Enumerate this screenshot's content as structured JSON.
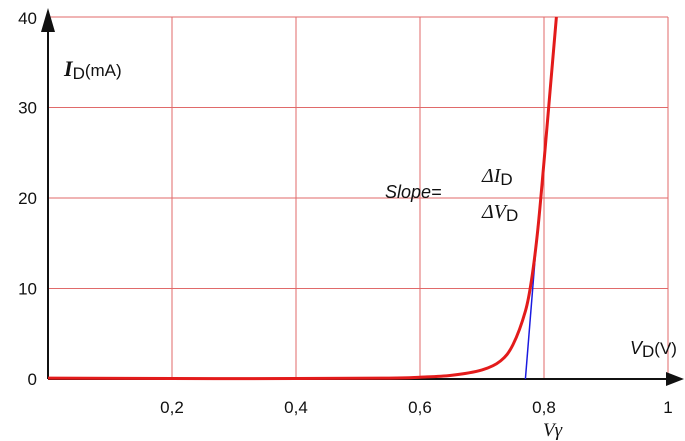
{
  "chart_data": {
    "type": "line",
    "xlim": [
      0,
      1
    ],
    "ylim": [
      0,
      40
    ],
    "x_ticks": [
      {
        "value": 0.2,
        "label": "0,2"
      },
      {
        "value": 0.4,
        "label": "0,4"
      },
      {
        "value": 0.6,
        "label": "0,6"
      },
      {
        "value": 0.8,
        "label": "0,8"
      },
      {
        "value": 1.0,
        "label": "1"
      }
    ],
    "y_ticks": [
      {
        "value": 0,
        "label": "0"
      },
      {
        "value": 10,
        "label": "10"
      },
      {
        "value": 20,
        "label": "20"
      },
      {
        "value": 30,
        "label": "30"
      },
      {
        "value": 40,
        "label": "40"
      }
    ],
    "xlabel": {
      "main": "V",
      "sub": "D",
      "unit": "(V)"
    },
    "ylabel": {
      "main": "I",
      "sub": "D",
      "unit": "(mA)"
    },
    "grid": true,
    "grid_color": "#e06a6a",
    "series": [
      {
        "color": "#e31b1b",
        "points": [
          [
            0.0,
            0.1
          ],
          [
            0.2,
            0.05
          ],
          [
            0.4,
            0.05
          ],
          [
            0.55,
            0.1
          ],
          [
            0.6,
            0.2
          ],
          [
            0.65,
            0.4
          ],
          [
            0.7,
            1.0
          ],
          [
            0.73,
            2.0
          ],
          [
            0.75,
            3.8
          ],
          [
            0.77,
            7.5
          ],
          [
            0.78,
            11.0
          ],
          [
            0.79,
            16.5
          ],
          [
            0.8,
            24.0
          ],
          [
            0.81,
            32.0
          ],
          [
            0.82,
            40.0
          ]
        ]
      }
    ],
    "tangent": {
      "color": "#1a1ae0",
      "points": [
        [
          0.77,
          0.0
        ],
        [
          0.79,
          17.0
        ]
      ]
    },
    "vgamma_value": 0.77,
    "annotations": {
      "slope_label": "Slope=",
      "numerator": {
        "main": "ΔI",
        "sub": "D"
      },
      "denominator": {
        "main": "ΔV",
        "sub": "D"
      },
      "vgamma": "Vγ"
    }
  }
}
